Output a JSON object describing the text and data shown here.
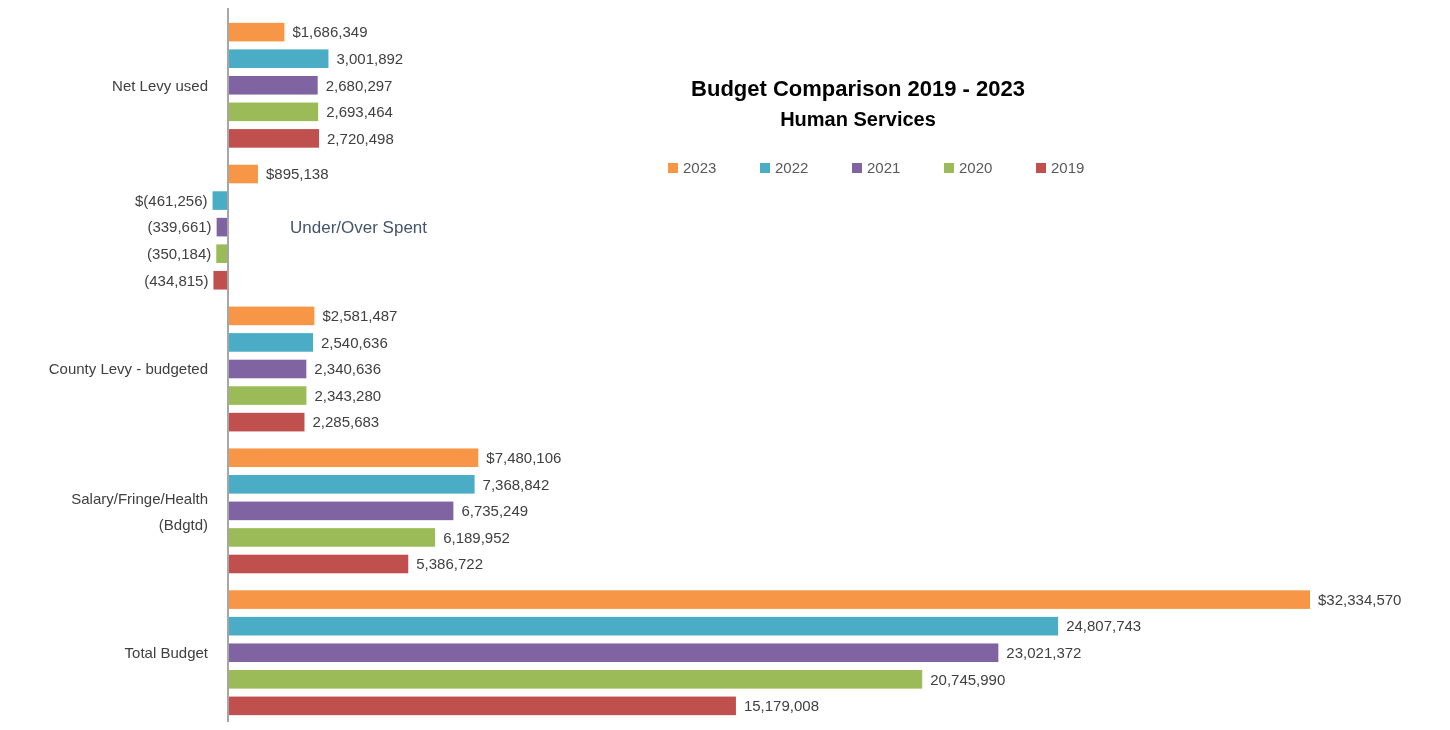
{
  "chart_data": {
    "type": "bar",
    "orientation": "horizontal",
    "title": "Budget Comparison 2019 - 2023",
    "subtitle": "Human Services",
    "categories": [
      "Net Levy used",
      "Under/Over Spent",
      "County Levy - budgeted",
      "Salary/Fringe/Health (Bdgtd)",
      "Total Budget"
    ],
    "legend": "top",
    "series": [
      {
        "name": "2023",
        "color": "#f79646",
        "values": [
          1686349,
          895138,
          2581487,
          7480106,
          32334570
        ],
        "value_labels": [
          "$1,686,349",
          "$895,138",
          "$2,581,487",
          "$7,480,106",
          "$32,334,570"
        ]
      },
      {
        "name": "2022",
        "color": "#4bacc6",
        "values": [
          3001892,
          -461256,
          2540636,
          7368842,
          24807743
        ],
        "value_labels": [
          "3,001,892",
          "$(461,256)",
          "2,540,636",
          "7,368,842",
          "24,807,743"
        ]
      },
      {
        "name": "2021",
        "color": "#8064a2",
        "values": [
          2680297,
          -339661,
          2340636,
          6735249,
          23021372
        ],
        "value_labels": [
          "2,680,297",
          "(339,661)",
          "2,340,636",
          "6,735,249",
          "23,021,372"
        ]
      },
      {
        "name": "2020",
        "color": "#9bbb59",
        "values": [
          2693464,
          -350184,
          2343280,
          6189952,
          20745990
        ],
        "value_labels": [
          "2,693,464",
          "(350,184)",
          "2,343,280",
          "6,189,952",
          "20,745,990"
        ]
      },
      {
        "name": "2019",
        "color": "#c0504d",
        "values": [
          2720498,
          -434815,
          2285683,
          5386722,
          15179008
        ],
        "value_labels": [
          "2,720,498",
          "(434,815)",
          "2,285,683",
          "5,386,722",
          "15,179,008"
        ]
      }
    ]
  }
}
